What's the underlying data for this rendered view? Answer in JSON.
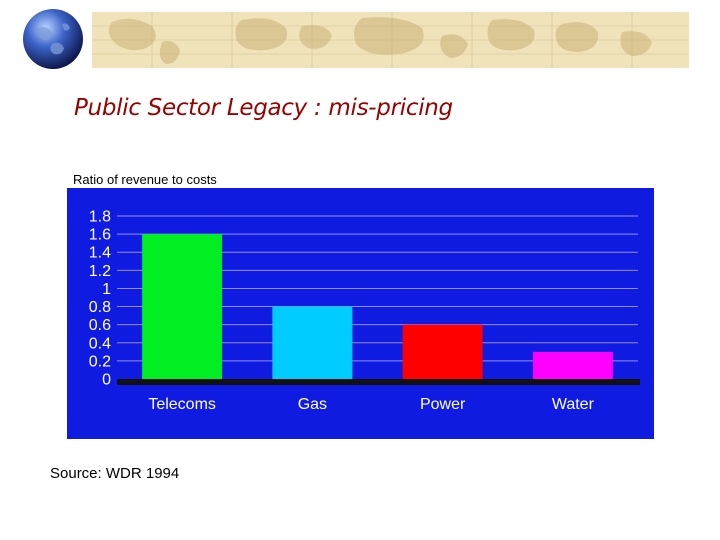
{
  "slide": {
    "title": "Public Sector Legacy : mis-pricing",
    "subtitle": "Ratio of revenue to costs",
    "source": "Source: WDR 1994"
  },
  "colors": {
    "background": "#0f1be0",
    "header_band": "#f0e3ba",
    "title": "#990000"
  },
  "icons": [
    "globe-icon"
  ],
  "chart_data": {
    "type": "bar",
    "categories": [
      "Telecoms",
      "Gas",
      "Power",
      "Water"
    ],
    "values": [
      1.6,
      0.8,
      0.6,
      0.3
    ],
    "bar_colors": [
      "#00ee22",
      "#00ccff",
      "#ff0000",
      "#ff00ff"
    ],
    "title": "",
    "xlabel": "",
    "ylabel": "",
    "ylim": [
      0,
      1.8
    ],
    "yticks": [
      "1.8",
      "1.6",
      "1.4",
      "1.2",
      "1",
      "0.8",
      "0.6",
      "0.4",
      "0.2",
      "0"
    ],
    "grid": true,
    "legend": "none"
  }
}
